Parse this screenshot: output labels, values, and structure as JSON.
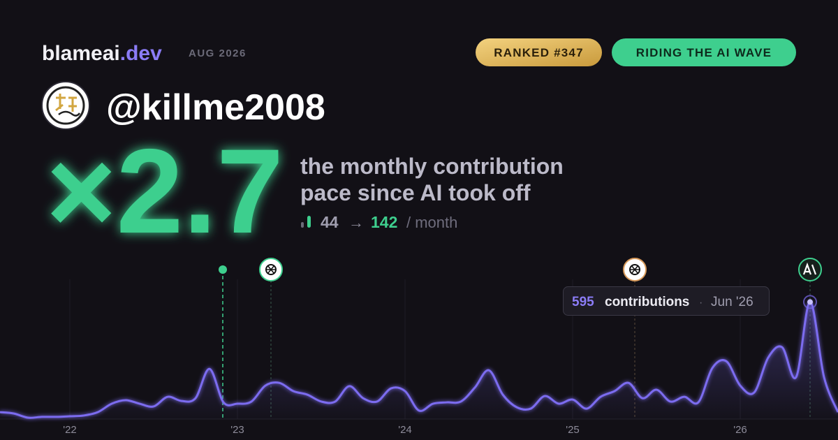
{
  "header": {
    "brand": "blameai",
    "brand_suffix": ".dev",
    "period": "AUG 2026",
    "badges": [
      "RANKED #347",
      "RIDING THE AI WAVE"
    ]
  },
  "profile": {
    "username": "@killme2008"
  },
  "headline": {
    "multiplier": "×2.7",
    "description": [
      "the monthly contribution",
      "pace since AI took off"
    ],
    "before": "44",
    "arrow": "→",
    "after": "142",
    "unit": "/ month"
  },
  "tooltip": {
    "label": "contributions",
    "separator": "·",
    "date": "Jun '26"
  },
  "chart_data": {
    "type": "line",
    "categories": [
      null,
      null,
      null,
      null,
      null,
      "'22",
      null,
      null,
      null,
      null,
      null,
      null,
      null,
      null,
      null,
      null,
      null,
      "'23",
      null,
      null,
      null,
      null,
      null,
      null,
      null,
      null,
      null,
      null,
      null,
      "'24",
      null,
      null,
      null,
      null,
      null,
      null,
      null,
      null,
      null,
      null,
      null,
      "'25",
      null,
      null,
      null,
      null,
      null,
      null,
      null,
      null,
      null,
      null,
      null,
      "'26",
      null,
      null,
      null,
      null,
      null,
      null,
      null
    ],
    "values": [
      35,
      28,
      7,
      11,
      11,
      14,
      18,
      35,
      78,
      96,
      78,
      64,
      113,
      92,
      106,
      255,
      85,
      78,
      89,
      170,
      184,
      142,
      124,
      89,
      89,
      167,
      106,
      89,
      156,
      142,
      43,
      78,
      85,
      89,
      160,
      248,
      124,
      60,
      53,
      117,
      78,
      99,
      53,
      113,
      142,
      184,
      106,
      149,
      89,
      113,
      85,
      259,
      294,
      170,
      135,
      312,
      365,
      213,
      595,
      213,
      35
    ],
    "color": "#7c6cf0",
    "ylim": [
      0,
      600
    ]
  }
}
